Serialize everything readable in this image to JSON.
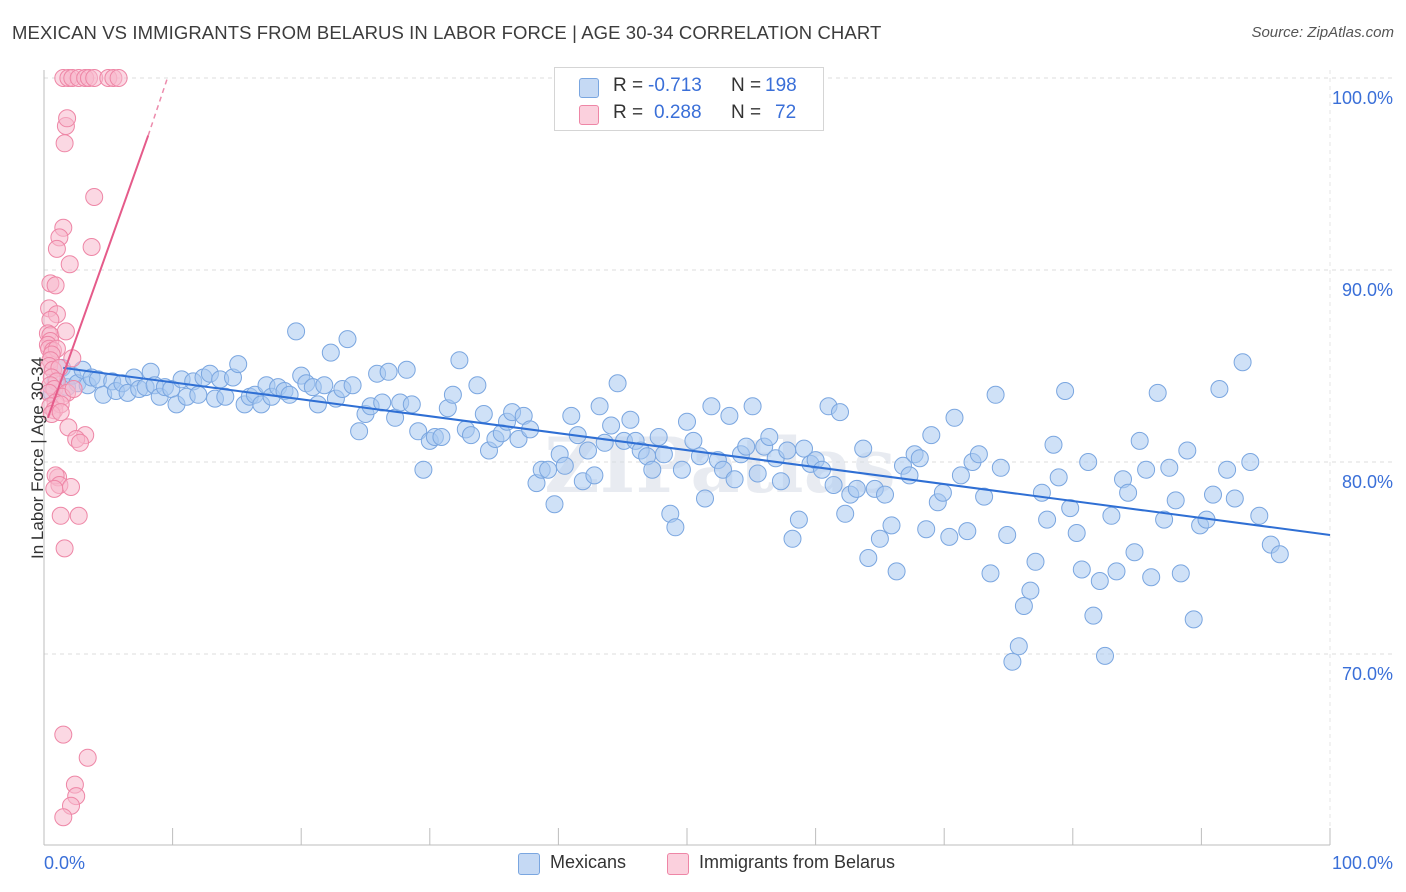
{
  "title": "MEXICAN VS IMMIGRANTS FROM BELARUS IN LABOR FORCE | AGE 30-34 CORRELATION CHART",
  "source": "Source: ZipAtlas.com",
  "watermark": "ZIPatlas",
  "stats": {
    "rows": [
      {
        "r_label": "R =",
        "r_value": "-0.713",
        "n_label": "N =",
        "n_value": "198",
        "color": "#a8c8f0"
      },
      {
        "r_label": "R =",
        "r_value": "0.288",
        "n_label": "N =",
        "n_value": "72",
        "color": "#f8b8cc"
      }
    ]
  },
  "legend": [
    {
      "label": "Mexicans",
      "color": "#a8c8f0"
    },
    {
      "label": "Immigrants from Belarus",
      "color": "#f8b8cc"
    }
  ],
  "chart_data": {
    "type": "scatter",
    "title": "MEXICAN VS IMMIGRANTS FROM BELARUS IN LABOR FORCE | AGE 30-34 CORRELATION CHART",
    "xlabel": "",
    "ylabel": "In Labor Force | Age 30-34",
    "xlim": [
      0,
      100
    ],
    "ylim": [
      60,
      101
    ],
    "x_tick_labels": [
      "0.0%",
      "100.0%"
    ],
    "y_ticks": [
      70,
      80,
      90,
      100
    ],
    "y_tick_labels": [
      "70.0%",
      "80.0%",
      "90.0%",
      "100.0%"
    ],
    "grid": true,
    "legend_position": "bottom",
    "series": [
      {
        "name": "Mexicans",
        "color": "#a8c8f0",
        "stroke": "#7aa6e0",
        "trend": {
          "x": [
            1.5,
            100
          ],
          "y": [
            84.9,
            76.2
          ],
          "color": "#2f6fd4"
        },
        "points": [
          [
            0.6,
            83.6
          ],
          [
            0.9,
            84.2
          ],
          [
            1.4,
            84.9
          ],
          [
            1.8,
            83.9
          ],
          [
            2.2,
            84.5
          ],
          [
            2.6,
            84.1
          ],
          [
            3.0,
            84.8
          ],
          [
            3.4,
            84.0
          ],
          [
            3.7,
            84.4
          ],
          [
            4.2,
            84.3
          ],
          [
            4.6,
            83.5
          ],
          [
            5.3,
            84.2
          ],
          [
            5.6,
            83.7
          ],
          [
            6.1,
            84.1
          ],
          [
            6.5,
            83.6
          ],
          [
            7.0,
            84.4
          ],
          [
            7.4,
            83.8
          ],
          [
            7.9,
            83.9
          ],
          [
            8.3,
            84.7
          ],
          [
            8.6,
            84.0
          ],
          [
            9.0,
            83.4
          ],
          [
            9.4,
            83.9
          ],
          [
            9.9,
            83.8
          ],
          [
            10.3,
            83.0
          ],
          [
            10.7,
            84.3
          ],
          [
            11.1,
            83.4
          ],
          [
            11.6,
            84.2
          ],
          [
            12.0,
            83.5
          ],
          [
            12.4,
            84.4
          ],
          [
            12.9,
            84.6
          ],
          [
            13.3,
            83.3
          ],
          [
            13.7,
            84.3
          ],
          [
            14.1,
            83.4
          ],
          [
            14.7,
            84.4
          ],
          [
            15.1,
            85.1
          ],
          [
            15.6,
            83.0
          ],
          [
            16.0,
            83.4
          ],
          [
            16.4,
            83.5
          ],
          [
            16.9,
            83.0
          ],
          [
            17.3,
            84.0
          ],
          [
            17.7,
            83.4
          ],
          [
            18.2,
            83.9
          ],
          [
            18.7,
            83.7
          ],
          [
            19.1,
            83.5
          ],
          [
            19.6,
            86.8
          ],
          [
            20.0,
            84.5
          ],
          [
            20.4,
            84.1
          ],
          [
            20.9,
            83.9
          ],
          [
            21.3,
            83.0
          ],
          [
            21.8,
            84.0
          ],
          [
            22.3,
            85.7
          ],
          [
            22.7,
            83.3
          ],
          [
            23.2,
            83.8
          ],
          [
            23.6,
            86.4
          ],
          [
            24.0,
            84.0
          ],
          [
            24.5,
            81.6
          ],
          [
            25.0,
            82.5
          ],
          [
            25.4,
            82.9
          ],
          [
            25.9,
            84.6
          ],
          [
            26.3,
            83.1
          ],
          [
            26.8,
            84.7
          ],
          [
            27.3,
            82.3
          ],
          [
            27.7,
            83.1
          ],
          [
            28.2,
            84.8
          ],
          [
            28.6,
            83.0
          ],
          [
            29.1,
            81.6
          ],
          [
            29.5,
            79.6
          ],
          [
            30.0,
            81.1
          ],
          [
            30.4,
            81.3
          ],
          [
            30.9,
            81.3
          ],
          [
            31.4,
            82.8
          ],
          [
            31.8,
            83.5
          ],
          [
            32.3,
            85.3
          ],
          [
            32.8,
            81.7
          ],
          [
            33.2,
            81.4
          ],
          [
            33.7,
            84.0
          ],
          [
            34.2,
            82.5
          ],
          [
            34.6,
            80.6
          ],
          [
            35.1,
            81.2
          ],
          [
            35.6,
            81.5
          ],
          [
            36.0,
            82.1
          ],
          [
            36.4,
            82.6
          ],
          [
            36.9,
            81.2
          ],
          [
            37.3,
            82.4
          ],
          [
            37.8,
            81.7
          ],
          [
            38.3,
            78.9
          ],
          [
            38.7,
            79.6
          ],
          [
            39.2,
            79.6
          ],
          [
            39.7,
            77.8
          ],
          [
            40.1,
            80.4
          ],
          [
            40.5,
            79.8
          ],
          [
            41.0,
            82.4
          ],
          [
            41.5,
            81.4
          ],
          [
            41.9,
            79.0
          ],
          [
            42.3,
            80.6
          ],
          [
            42.8,
            79.3
          ],
          [
            43.2,
            82.9
          ],
          [
            43.6,
            81.0
          ],
          [
            44.1,
            81.9
          ],
          [
            44.6,
            84.1
          ],
          [
            45.1,
            81.1
          ],
          [
            45.6,
            82.2
          ],
          [
            46.0,
            81.1
          ],
          [
            46.4,
            80.6
          ],
          [
            46.9,
            80.3
          ],
          [
            47.3,
            79.6
          ],
          [
            47.8,
            81.3
          ],
          [
            48.2,
            80.4
          ],
          [
            48.7,
            77.3
          ],
          [
            49.1,
            76.6
          ],
          [
            49.6,
            79.6
          ],
          [
            50.0,
            82.1
          ],
          [
            50.5,
            81.1
          ],
          [
            51.0,
            80.3
          ],
          [
            51.4,
            78.1
          ],
          [
            51.9,
            82.9
          ],
          [
            52.4,
            80.1
          ],
          [
            52.8,
            79.6
          ],
          [
            53.3,
            82.4
          ],
          [
            53.7,
            79.1
          ],
          [
            54.2,
            80.4
          ],
          [
            54.6,
            80.8
          ],
          [
            55.1,
            82.9
          ],
          [
            55.5,
            79.4
          ],
          [
            56.0,
            80.8
          ],
          [
            56.4,
            81.3
          ],
          [
            56.9,
            80.2
          ],
          [
            57.3,
            79.0
          ],
          [
            57.8,
            80.6
          ],
          [
            58.2,
            76.0
          ],
          [
            58.7,
            77.0
          ],
          [
            59.1,
            80.7
          ],
          [
            59.6,
            79.9
          ],
          [
            60.0,
            80.1
          ],
          [
            60.5,
            79.6
          ],
          [
            61.0,
            82.9
          ],
          [
            61.4,
            78.8
          ],
          [
            61.9,
            82.6
          ],
          [
            62.3,
            77.3
          ],
          [
            62.7,
            78.3
          ],
          [
            63.2,
            78.6
          ],
          [
            63.7,
            80.7
          ],
          [
            64.1,
            75.0
          ],
          [
            64.6,
            78.6
          ],
          [
            65.0,
            76.0
          ],
          [
            65.4,
            78.3
          ],
          [
            65.9,
            76.7
          ],
          [
            66.3,
            74.3
          ],
          [
            66.8,
            79.8
          ],
          [
            67.3,
            79.3
          ],
          [
            67.7,
            80.4
          ],
          [
            68.1,
            80.2
          ],
          [
            68.6,
            76.5
          ],
          [
            69.0,
            81.4
          ],
          [
            69.5,
            77.9
          ],
          [
            69.9,
            78.4
          ],
          [
            70.4,
            76.1
          ],
          [
            70.8,
            82.3
          ],
          [
            71.3,
            79.3
          ],
          [
            71.8,
            76.4
          ],
          [
            72.2,
            80.0
          ],
          [
            72.7,
            80.4
          ],
          [
            73.1,
            78.2
          ],
          [
            73.6,
            74.2
          ],
          [
            74.0,
            83.5
          ],
          [
            74.4,
            79.7
          ],
          [
            74.9,
            76.2
          ],
          [
            75.3,
            69.6
          ],
          [
            75.8,
            70.4
          ],
          [
            76.2,
            72.5
          ],
          [
            76.7,
            73.3
          ],
          [
            77.1,
            74.8
          ],
          [
            77.6,
            78.4
          ],
          [
            78.0,
            77.0
          ],
          [
            78.5,
            80.9
          ],
          [
            78.9,
            79.2
          ],
          [
            79.4,
            83.7
          ],
          [
            79.8,
            77.6
          ],
          [
            80.3,
            76.3
          ],
          [
            80.7,
            74.4
          ],
          [
            81.2,
            80.0
          ],
          [
            81.6,
            72.0
          ],
          [
            82.1,
            73.8
          ],
          [
            82.5,
            69.9
          ],
          [
            83.0,
            77.2
          ],
          [
            83.4,
            74.3
          ],
          [
            83.9,
            79.1
          ],
          [
            84.3,
            78.4
          ],
          [
            84.8,
            75.3
          ],
          [
            85.2,
            81.1
          ],
          [
            85.7,
            79.6
          ],
          [
            86.1,
            74.0
          ],
          [
            86.6,
            83.6
          ],
          [
            87.1,
            77.0
          ],
          [
            87.5,
            79.7
          ],
          [
            88.0,
            78.0
          ],
          [
            88.4,
            74.2
          ],
          [
            88.9,
            80.6
          ],
          [
            89.4,
            71.8
          ],
          [
            89.9,
            76.7
          ],
          [
            90.4,
            77.0
          ],
          [
            90.9,
            78.3
          ],
          [
            91.4,
            83.8
          ],
          [
            92.0,
            79.6
          ],
          [
            92.6,
            78.1
          ],
          [
            93.2,
            85.2
          ],
          [
            93.8,
            80.0
          ],
          [
            94.5,
            77.2
          ],
          [
            95.4,
            75.7
          ],
          [
            96.1,
            75.2
          ]
        ]
      },
      {
        "name": "Immigrants from Belarus",
        "color": "#f8b8cc",
        "stroke": "#ee86a6",
        "trend": {
          "x": [
            0.3,
            8.1
          ],
          "y": [
            82.3,
            97.0
          ],
          "color": "#e55b8a",
          "dash_to": [
            9.6,
            100.0
          ]
        },
        "points": [
          [
            1.5,
            100.0
          ],
          [
            1.9,
            100.0
          ],
          [
            2.2,
            100.0
          ],
          [
            2.7,
            100.0
          ],
          [
            3.2,
            100.0
          ],
          [
            3.5,
            100.0
          ],
          [
            3.9,
            100.0
          ],
          [
            5.0,
            100.0
          ],
          [
            5.4,
            100.0
          ],
          [
            5.8,
            100.0
          ],
          [
            1.7,
            97.5
          ],
          [
            1.8,
            97.9
          ],
          [
            1.6,
            96.6
          ],
          [
            3.9,
            93.8
          ],
          [
            1.5,
            92.2
          ],
          [
            1.2,
            91.7
          ],
          [
            3.7,
            91.2
          ],
          [
            1.0,
            91.1
          ],
          [
            2.0,
            90.3
          ],
          [
            0.5,
            89.3
          ],
          [
            0.9,
            89.2
          ],
          [
            0.4,
            88.0
          ],
          [
            1.0,
            87.7
          ],
          [
            0.5,
            87.4
          ],
          [
            0.3,
            86.7
          ],
          [
            0.5,
            86.6
          ],
          [
            1.7,
            86.8
          ],
          [
            0.5,
            86.3
          ],
          [
            0.3,
            86.1
          ],
          [
            0.4,
            85.9
          ],
          [
            0.7,
            85.8
          ],
          [
            1.0,
            85.9
          ],
          [
            0.6,
            85.6
          ],
          [
            0.5,
            85.3
          ],
          [
            0.4,
            85.0
          ],
          [
            0.7,
            84.8
          ],
          [
            1.2,
            84.9
          ],
          [
            0.6,
            84.4
          ],
          [
            1.0,
            84.2
          ],
          [
            0.5,
            84.0
          ],
          [
            0.8,
            83.8
          ],
          [
            0.4,
            83.6
          ],
          [
            1.8,
            83.6
          ],
          [
            2.2,
            85.4
          ],
          [
            1.4,
            83.4
          ],
          [
            0.9,
            83.1
          ],
          [
            0.5,
            82.9
          ],
          [
            0.8,
            82.7
          ],
          [
            1.3,
            83.0
          ],
          [
            0.6,
            82.5
          ],
          [
            2.3,
            83.8
          ],
          [
            1.3,
            82.6
          ],
          [
            1.9,
            81.8
          ],
          [
            3.2,
            81.4
          ],
          [
            2.5,
            81.2
          ],
          [
            2.8,
            81.0
          ],
          [
            1.1,
            79.2
          ],
          [
            0.9,
            79.3
          ],
          [
            1.2,
            78.8
          ],
          [
            0.8,
            78.6
          ],
          [
            2.1,
            78.7
          ],
          [
            1.3,
            77.2
          ],
          [
            2.7,
            77.2
          ],
          [
            1.6,
            75.5
          ],
          [
            1.5,
            65.8
          ],
          [
            3.4,
            64.6
          ],
          [
            2.4,
            63.2
          ],
          [
            2.5,
            62.6
          ],
          [
            2.1,
            62.1
          ],
          [
            1.5,
            61.5
          ]
        ]
      }
    ]
  }
}
